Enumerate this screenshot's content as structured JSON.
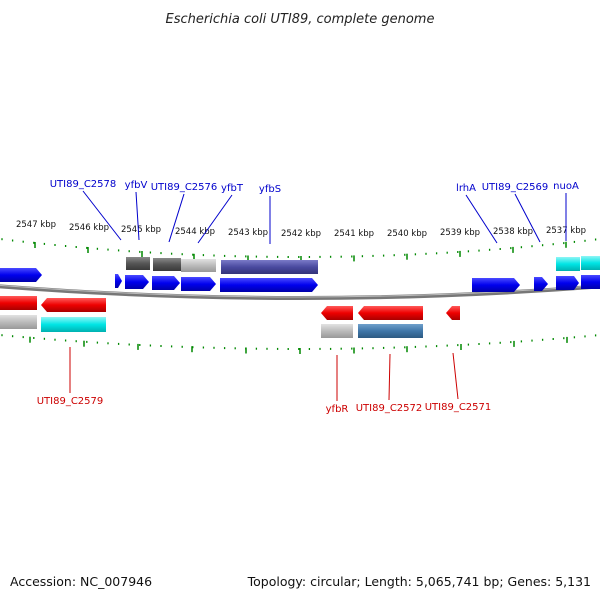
{
  "title": "Escherichia coli UTI89, complete genome",
  "footer": {
    "accession": "Accession: NC_007946",
    "summary": "Topology: circular; Length: 5,065,741 bp; Genes: 5,131"
  },
  "colors": {
    "forward_cds": "#0000ee",
    "reverse_cds": "#ee0000",
    "forward_label": "#0000cc",
    "reverse_label": "#cc0000",
    "ticks": "#008800",
    "backbone": "#888888",
    "cyan_feature": "#00e5e5",
    "purple_feature": "#4a4aa0",
    "steelblue_feature": "#3f76a8",
    "dark_gray_feature": "#555555",
    "light_gray_feature": "#bbbbbb"
  },
  "scale": {
    "unit": "kbp",
    "labels": [
      "2547 kbp",
      "2546 kbp",
      "2545 kbp",
      "2544 kbp",
      "2543 kbp",
      "2542 kbp",
      "2541 kbp",
      "2540 kbp",
      "2539 kbp",
      "2538 kbp",
      "2537 kbp"
    ]
  },
  "forward_gene_labels": [
    "UTI89_C2578",
    "yfbV",
    "UTI89_C2576",
    "yfbT",
    "yfbS",
    "lrhA",
    "UTI89_C2569",
    "nuoA"
  ],
  "reverse_gene_labels": [
    "UTI89_C2579",
    "yfbR",
    "UTI89_C2572",
    "UTI89_C2571"
  ]
}
